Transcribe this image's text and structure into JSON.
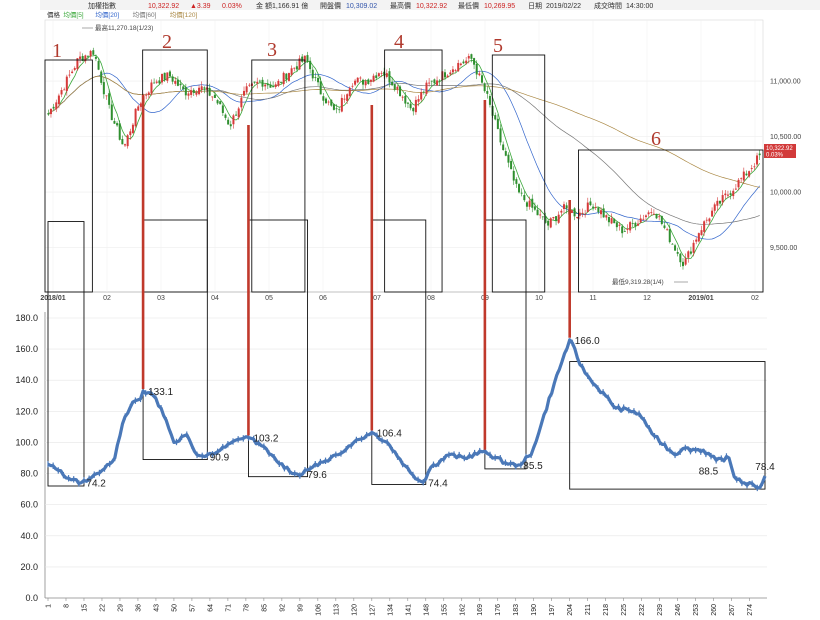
{
  "header": {
    "index_name": "加權指數",
    "price": "10,322.92",
    "change": "▲3.39",
    "change_pct": "0.03%",
    "amount_label": "金 額",
    "amount": "1,166.91 億",
    "open_label": "開盤價",
    "open": "10,309.02",
    "high_label": "最高價",
    "high": "10,322.92",
    "low_label": "最低價",
    "low": "10,269.95",
    "date_label": "日期",
    "date": "2019/02/22",
    "time_label": "成交時間",
    "time": "14:30:00",
    "legend": [
      {
        "label": "價格",
        "color": "#333333"
      },
      {
        "label": "均價[5]",
        "color": "#3aa83a"
      },
      {
        "label": "均價[20]",
        "color": "#3366cc"
      },
      {
        "label": "均價[60]",
        "color": "#777777"
      },
      {
        "label": "均價[120]",
        "color": "#aa8844"
      }
    ]
  },
  "top_chart": {
    "type": "candlestick",
    "yticks": [
      {
        "label": "11,000.00",
        "value": 11000
      },
      {
        "label": "10,500.00",
        "value": 10500
      },
      {
        "label": "10,000.00",
        "value": 10000
      },
      {
        "label": "9,500.00",
        "value": 9500
      }
    ],
    "ylim": [
      9100,
      11550
    ],
    "xticks": [
      "2018/01",
      "02",
      "03",
      "04",
      "05",
      "06",
      "07",
      "08",
      "09",
      "10",
      "11",
      "12",
      "2019/01",
      "02"
    ],
    "high_annotation": "最高11,270.18(1/23)",
    "low_annotation": "最低9,319.28(1/4)",
    "last_price_tag": "10,322.92",
    "last_pct_tag": "0.03%",
    "close_path": [
      10700,
      10950,
      11200,
      11270,
      10750,
      10400,
      10800,
      11000,
      11050,
      10900,
      10950,
      10850,
      10600,
      10900,
      11000,
      10950,
      11100,
      11200,
      10900,
      10700,
      11000,
      11000,
      11100,
      10950,
      10750,
      10950,
      11050,
      11150,
      11200,
      10850,
      10400,
      10000,
      9850,
      9700,
      9850,
      9800,
      9900,
      9750,
      9650,
      9750,
      9850,
      9600,
      9350,
      9650,
      9850,
      10000,
      10150,
      10322
    ],
    "highlight_regions": [
      {
        "label": "1",
        "x0": 0.0,
        "x1": 0.066
      },
      {
        "label": "2",
        "x0": 0.136,
        "x1": 0.226
      },
      {
        "label": "3",
        "x0": 0.288,
        "x1": 0.362
      },
      {
        "label": "4",
        "x0": 0.473,
        "x1": 0.553
      },
      {
        "label": "5",
        "x0": 0.623,
        "x1": 0.696
      },
      {
        "label": "6",
        "x0": 0.743,
        "x1": 1.0
      }
    ]
  },
  "chart_data": {
    "type": "line",
    "title": "",
    "xlabel": "",
    "ylabel": "",
    "ylim": [
      0,
      180
    ],
    "yticks": [
      "0.0",
      "20.0",
      "40.0",
      "60.0",
      "80.0",
      "100.0",
      "120.0",
      "140.0",
      "160.0",
      "180.0"
    ],
    "xticks": [
      "1",
      "8",
      "15",
      "22",
      "29",
      "36",
      "43",
      "50",
      "57",
      "64",
      "71",
      "78",
      "85",
      "92",
      "99",
      "106",
      "113",
      "120",
      "127",
      "134",
      "141",
      "148",
      "155",
      "162",
      "169",
      "176",
      "183",
      "190",
      "197",
      "204",
      "211",
      "218",
      "225",
      "232",
      "239",
      "246",
      "253",
      "260",
      "267",
      "274"
    ],
    "x_range": [
      1,
      280
    ],
    "series_keypoints": [
      [
        1,
        86
      ],
      [
        5,
        82
      ],
      [
        10,
        76
      ],
      [
        14,
        74.2
      ],
      [
        20,
        80
      ],
      [
        27,
        90
      ],
      [
        30,
        112
      ],
      [
        34,
        126
      ],
      [
        37,
        128
      ],
      [
        38,
        133.1
      ],
      [
        42,
        130
      ],
      [
        45,
        122
      ],
      [
        50,
        100
      ],
      [
        55,
        105
      ],
      [
        59,
        92
      ],
      [
        62,
        90.9
      ],
      [
        67,
        94
      ],
      [
        75,
        102
      ],
      [
        79,
        103.2
      ],
      [
        84,
        98
      ],
      [
        90,
        88
      ],
      [
        97,
        80
      ],
      [
        100,
        79.6
      ],
      [
        105,
        86
      ],
      [
        110,
        88
      ],
      [
        120,
        100
      ],
      [
        127,
        106.4
      ],
      [
        133,
        100
      ],
      [
        140,
        85
      ],
      [
        145,
        76
      ],
      [
        147,
        74.4
      ],
      [
        150,
        84
      ],
      [
        157,
        92
      ],
      [
        163,
        90
      ],
      [
        170,
        94
      ],
      [
        173,
        92
      ],
      [
        180,
        86
      ],
      [
        184,
        85.5
      ],
      [
        189,
        92
      ],
      [
        193,
        112
      ],
      [
        198,
        138
      ],
      [
        204,
        166
      ],
      [
        205,
        164
      ],
      [
        208,
        150
      ],
      [
        213,
        138
      ],
      [
        218,
        130
      ],
      [
        222,
        122
      ],
      [
        229,
        120
      ],
      [
        232,
        116
      ],
      [
        237,
        104
      ],
      [
        245,
        92
      ],
      [
        248,
        96
      ],
      [
        256,
        95
      ],
      [
        261,
        88.5
      ],
      [
        266,
        90
      ],
      [
        268,
        78
      ],
      [
        272,
        74
      ],
      [
        276,
        72
      ],
      [
        278,
        71
      ],
      [
        280,
        78.4
      ]
    ],
    "data_labels": [
      {
        "x": 14,
        "y": 74.2,
        "text": "74.2",
        "pos": "right"
      },
      {
        "x": 38,
        "y": 133.1,
        "text": "133.1",
        "pos": "right"
      },
      {
        "x": 62,
        "y": 90.9,
        "text": "90.9",
        "pos": "right"
      },
      {
        "x": 79,
        "y": 103.2,
        "text": "103.2",
        "pos": "right"
      },
      {
        "x": 100,
        "y": 79.6,
        "text": "79.6",
        "pos": "right"
      },
      {
        "x": 127,
        "y": 106.4,
        "text": "106.4",
        "pos": "right"
      },
      {
        "x": 147,
        "y": 74.4,
        "text": "74.4",
        "pos": "right"
      },
      {
        "x": 184,
        "y": 85.5,
        "text": "85.5",
        "pos": "right"
      },
      {
        "x": 204,
        "y": 166.0,
        "text": "166.0",
        "pos": "right"
      },
      {
        "x": 258,
        "y": 88.5,
        "text": "88.5",
        "pos": "below"
      },
      {
        "x": 280,
        "y": 78.4,
        "text": "78.4",
        "pos": "above"
      }
    ],
    "highlight_boxes": [
      {
        "label": "1",
        "x0": 1,
        "x1": 15,
        "y0": 72,
        "y1": 242
      },
      {
        "label": "2",
        "x0": 38,
        "x1": 63,
        "y0": 89,
        "y1": 243
      },
      {
        "label": "3",
        "x0": 79,
        "x1": 102,
        "y0": 78,
        "y1": 243
      },
      {
        "label": "4",
        "x0": 127,
        "x1": 148,
        "y0": 73,
        "y1": 243
      },
      {
        "label": "5",
        "x0": 171,
        "x1": 187,
        "y0": 83,
        "y1": 243
      },
      {
        "label": "6",
        "x0": 204,
        "x1": 280,
        "y0": 70,
        "y1": 152
      }
    ],
    "line_color": "#4a78b8"
  }
}
